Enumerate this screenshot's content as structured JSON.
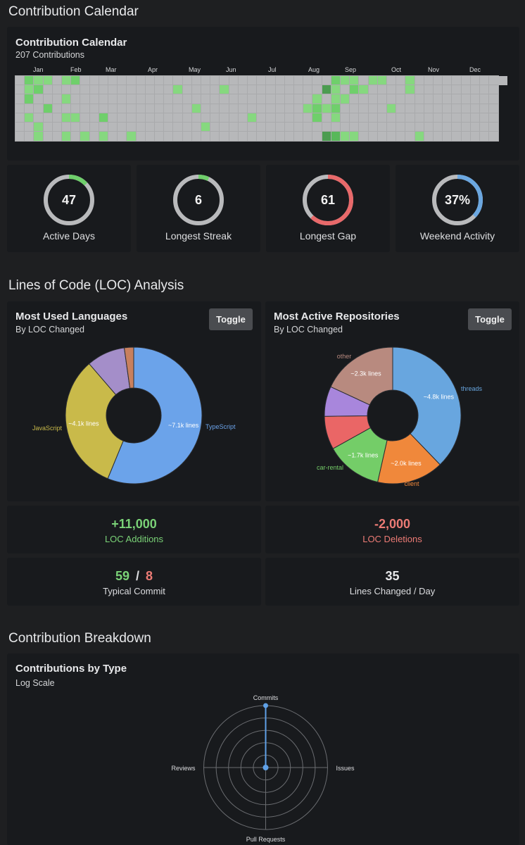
{
  "sections": {
    "calendar": "Contribution Calendar",
    "loc": "Lines of Code (LOC) Analysis",
    "breakdown": "Contribution Breakdown"
  },
  "calendar": {
    "title": "Contribution Calendar",
    "subtitle": "207 Contributions",
    "months": [
      "Jan",
      "Feb",
      "Mar",
      "Apr",
      "May",
      "Jun",
      "Jul",
      "Aug",
      "Sep",
      "Oct",
      "Nov",
      "Dec"
    ],
    "colors": {
      "empty": "#b7b8ba",
      "l1": "#86d87f",
      "l2": "#6fcf6b",
      "l3": "#58b85a",
      "l4": "#4b9c50"
    }
  },
  "stats": [
    {
      "value": "47",
      "label": "Active Days",
      "fraction": 0.13,
      "color": "#6fcf6b"
    },
    {
      "value": "6",
      "label": "Longest Streak",
      "fraction": 0.07,
      "color": "#6fcf6b"
    },
    {
      "value": "61",
      "label": "Longest Gap",
      "fraction": 0.62,
      "color": "#e8696a"
    },
    {
      "value": "37%",
      "label": "Weekend Activity",
      "fraction": 0.37,
      "color": "#6ba7e0"
    }
  ],
  "languages": {
    "title": "Most Used Languages",
    "subtitle": "By LOC Changed",
    "toggle": "Toggle"
  },
  "repos": {
    "title": "Most Active Repositories",
    "subtitle": "By LOC Changed",
    "toggle": "Toggle"
  },
  "loc_stats": {
    "additions_value": "+11,000",
    "additions_label": "LOC Additions",
    "deletions_value": "-2,000",
    "deletions_label": "LOC Deletions",
    "typical_add": "59",
    "typical_sep": "/",
    "typical_del": "8",
    "typical_label": "Typical Commit",
    "per_day_value": "35",
    "per_day_label": "Lines Changed / Day"
  },
  "breakdown": {
    "title": "Contributions by Type",
    "subtitle": "Log Scale"
  },
  "chart_data": [
    {
      "type": "pie",
      "title": "Most Used Languages",
      "slices": [
        {
          "name": "TypeScript",
          "value": 7100,
          "label": "~7.1k lines",
          "color": "#6ba3ea"
        },
        {
          "name": "JavaScript",
          "value": 4100,
          "label": "~4.1k lines",
          "color": "#c9ba4a"
        },
        {
          "name": "",
          "value": 1150,
          "label": "",
          "color": "#a48ec9"
        },
        {
          "name": "",
          "value": 280,
          "label": "",
          "color": "#c8805e"
        }
      ]
    },
    {
      "type": "pie",
      "title": "Most Active Repositories",
      "slices": [
        {
          "name": "threads",
          "value": 4800,
          "label": "~4.8k lines",
          "color": "#68a6df"
        },
        {
          "name": "client",
          "value": 2000,
          "label": "~2.0k lines",
          "color": "#f0883b"
        },
        {
          "name": "car-rental",
          "value": 1700,
          "label": "~1.7k lines",
          "color": "#74cd68"
        },
        {
          "name": "",
          "value": 1000,
          "label": "",
          "color": "#ea6666"
        },
        {
          "name": "",
          "value": 900,
          "label": "",
          "color": "#a886dc"
        },
        {
          "name": "other",
          "value": 2300,
          "label": "~2.3k lines",
          "color": "#b88a7f"
        }
      ]
    },
    {
      "type": "radar",
      "title": "Contributions by Type",
      "axes": [
        "Commits",
        "Issues",
        "Pull Requests",
        "Reviews"
      ],
      "values": [
        1,
        0,
        0,
        0
      ],
      "scale": "log"
    }
  ]
}
